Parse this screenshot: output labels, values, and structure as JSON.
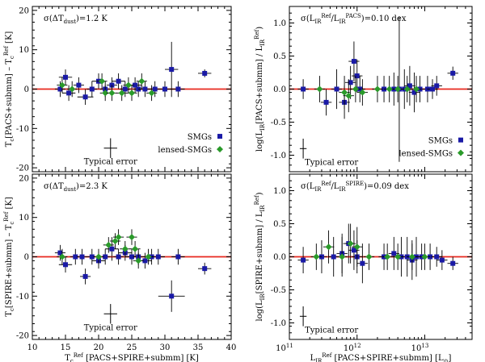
{
  "chart_data": [
    {
      "id": "p1",
      "type": "scatter",
      "title": "",
      "xscale": "linear",
      "yscale": "linear",
      "xlim": [
        10,
        40
      ],
      "ylim": [
        -21,
        21
      ],
      "xticks": [
        10,
        15,
        20,
        25,
        30,
        35,
        40
      ],
      "yticks": [
        -20,
        -10,
        0,
        10,
        20
      ],
      "xticklabels": [],
      "yticklabels": [
        "-20",
        "-10",
        "0",
        "10",
        "20"
      ],
      "xlabel": "",
      "ylabel": "T_c[PACS+submm] – T_c^Ref [K]",
      "ylabel_parts": [
        "T",
        "c",
        "[PACS+submm] – T",
        "c",
        "Ref",
        " [K]"
      ],
      "zero_line": 0,
      "annotation": "σ(ΔT_dust)=1.2 K",
      "annotation_parts": [
        "σ(ΔT",
        "dust",
        ")=1.2 K"
      ],
      "typical_error": {
        "label": "Typical error",
        "x": 21.8,
        "y": -15,
        "dx": 1.0,
        "dy": 2.5
      },
      "legend": [
        {
          "name": "SMGs",
          "color": "#1a1aa6",
          "marker": "square"
        },
        {
          "name": "lensed-SMGs",
          "color": "#2a9a2a",
          "marker": "diamond"
        }
      ],
      "series": [
        {
          "name": "SMGs",
          "marker": "square",
          "color": "#1a1aa6",
          "points": [
            [
              14.2,
              0,
              0.8,
              2
            ],
            [
              15.0,
              3,
              1.0,
              2
            ],
            [
              15.5,
              -1,
              1.0,
              2
            ],
            [
              17.0,
              1,
              0.8,
              2
            ],
            [
              18.0,
              -2,
              1.2,
              2
            ],
            [
              19.0,
              0,
              0.8,
              2
            ],
            [
              20.0,
              2,
              1.0,
              2
            ],
            [
              21.0,
              0,
              0.8,
              2
            ],
            [
              22.0,
              1,
              0.8,
              2
            ],
            [
              23.0,
              2,
              1.0,
              2
            ],
            [
              24.0,
              0,
              0.8,
              2
            ],
            [
              25.5,
              1,
              1.0,
              2
            ],
            [
              26.0,
              0,
              0.8,
              2
            ],
            [
              27.0,
              0,
              1.0,
              2
            ],
            [
              28.5,
              0,
              1.0,
              2
            ],
            [
              30.0,
              0,
              1.0,
              2
            ],
            [
              31.0,
              5,
              1.0,
              7
            ],
            [
              32.0,
              0,
              1.0,
              2
            ],
            [
              36.0,
              4,
              1.0,
              1
            ]
          ]
        },
        {
          "name": "lensed-SMGs",
          "marker": "diamond",
          "color": "#2a9a2a",
          "points": [
            [
              14.5,
              1,
              0.8,
              2
            ],
            [
              16.0,
              0,
              0.8,
              2
            ],
            [
              20.5,
              2,
              0.8,
              2
            ],
            [
              21.0,
              -1,
              0.8,
              2
            ],
            [
              22.0,
              -1,
              0.8,
              2
            ],
            [
              23.5,
              -1,
              0.8,
              2
            ],
            [
              24.5,
              1,
              0.8,
              2
            ],
            [
              25.0,
              -1,
              0.8,
              2
            ],
            [
              26.5,
              2,
              0.8,
              2
            ],
            [
              28.0,
              -1,
              0.8,
              2
            ]
          ]
        }
      ]
    },
    {
      "id": "p2",
      "type": "scatter",
      "title": "",
      "xscale": "log",
      "yscale": "linear",
      "xlim": [
        100000000000.0,
        50000000000000.0
      ],
      "ylim": [
        -1.25,
        1.25
      ],
      "xticks_major": [
        100000000000.0,
        1000000000000.0,
        10000000000000.0
      ],
      "yticks": [
        -1.0,
        -0.5,
        0.0,
        0.5,
        1.0
      ],
      "xticklabels": [],
      "yticklabels": [
        "-1.0",
        "-0.5",
        "0.0",
        "0.5",
        "1.0"
      ],
      "xlabel": "",
      "ylabel": "log(L_IR[PACS+submm] / L_IR^Ref)",
      "ylabel_parts": [
        "log(L",
        "IR",
        "[PACS+submm] / L",
        "IR",
        "Ref",
        ")"
      ],
      "zero_line": 0,
      "annotation": "σ(L_IR^Ref/L_IR^PACS)=0.10 dex",
      "annotation_parts": [
        "σ(L",
        "IR",
        "Ref",
        "/L",
        "IR",
        "PACS",
        ")=0.10 dex"
      ],
      "typical_error": {
        "label": "Typical error",
        "x": 160000000000.0,
        "y": -0.9,
        "dx": 0.05,
        "dy": 0.15
      },
      "legend": [
        {
          "name": "SMGs",
          "color": "#1a1aa6",
          "marker": "square"
        },
        {
          "name": "lensed-SMGs",
          "color": "#2a9a2a",
          "marker": "diamond"
        }
      ],
      "series": [
        {
          "name": "SMGs",
          "marker": "square",
          "color": "#1a1aa6",
          "points": [
            [
              160000000000.0,
              0.0,
              0.08,
              0.15
            ],
            [
              350000000000.0,
              -0.2,
              0.08,
              0.2
            ],
            [
              500000000000.0,
              0.0,
              0.08,
              0.3
            ],
            [
              650000000000.0,
              -0.2,
              0.08,
              0.25
            ],
            [
              800000000000.0,
              0.1,
              0.08,
              0.25
            ],
            [
              900000000000.0,
              0.42,
              0.08,
              0.3
            ],
            [
              1000000000000.0,
              0.2,
              0.08,
              0.25
            ],
            [
              1100000000000.0,
              0.0,
              0.08,
              0.2
            ],
            [
              2500000000000.0,
              0.0,
              0.08,
              0.2
            ],
            [
              3500000000000.0,
              0.0,
              0.08,
              0.25
            ],
            [
              4200000000000.0,
              0.0,
              0.08,
              1.1
            ],
            [
              5000000000000.0,
              0.0,
              0.08,
              0.3
            ],
            [
              6000000000000.0,
              0.05,
              0.08,
              0.3
            ],
            [
              7000000000000.0,
              -0.05,
              0.08,
              0.3
            ],
            [
              8500000000000.0,
              0.0,
              0.08,
              0.2
            ],
            [
              11000000000000.0,
              0.0,
              0.08,
              0.2
            ],
            [
              13000000000000.0,
              0.0,
              0.08,
              0.15
            ],
            [
              15000000000000.0,
              0.05,
              0.08,
              0.15
            ],
            [
              26000000000000.0,
              0.24,
              0.08,
              0.1
            ]
          ]
        },
        {
          "name": "lensed-SMGs",
          "marker": "diamond",
          "color": "#2a9a2a",
          "points": [
            [
              280000000000.0,
              0.0,
              0.08,
              0.2
            ],
            [
              650000000000.0,
              -0.05,
              0.08,
              0.25
            ],
            [
              750000000000.0,
              -0.1,
              0.08,
              0.25
            ],
            [
              950000000000.0,
              0.0,
              0.08,
              0.2
            ],
            [
              1200000000000.0,
              -0.05,
              0.08,
              0.2
            ],
            [
              2000000000000.0,
              0.0,
              0.08,
              0.2
            ],
            [
              3000000000000.0,
              0.0,
              0.08,
              0.2
            ],
            [
              4000000000000.0,
              0.0,
              0.08,
              0.2
            ],
            [
              5500000000000.0,
              0.0,
              0.08,
              0.2
            ],
            [
              7500000000000.0,
              0.0,
              0.08,
              0.2
            ]
          ]
        }
      ]
    },
    {
      "id": "p3",
      "type": "scatter",
      "title": "",
      "xscale": "linear",
      "yscale": "linear",
      "xlim": [
        10,
        40
      ],
      "ylim": [
        -21,
        21
      ],
      "xticks": [
        10,
        15,
        20,
        25,
        30,
        35,
        40
      ],
      "yticks": [
        -20,
        -10,
        0,
        10,
        20
      ],
      "xticklabels": [
        "10",
        "15",
        "20",
        "25",
        "30",
        "35",
        "40"
      ],
      "yticklabels": [
        "-20",
        "-10",
        "0",
        "10",
        "20"
      ],
      "xlabel": "T_c^Ref [PACS+SPIRE+submm] [K]",
      "xlabel_parts": [
        "T",
        "c",
        "Ref",
        " [PACS+SPIRE+submm] [K]"
      ],
      "ylabel": "T_c[SPIRE+submm] – T_c^Ref [K]",
      "ylabel_parts": [
        "T",
        "c",
        "[SPIRE+submm] – T",
        "c",
        "Ref",
        " [K]"
      ],
      "zero_line": 0,
      "annotation": "σ(ΔT_dust)=2.3 K",
      "annotation_parts": [
        "σ(ΔT",
        "dust",
        ")=2.3 K"
      ],
      "typical_error": {
        "label": "Typical error",
        "x": 21.8,
        "y": -14.5,
        "dx": 1.0,
        "dy": 2.5
      },
      "series": [
        {
          "name": "SMGs",
          "marker": "square",
          "color": "#1a1aa6",
          "points": [
            [
              14.2,
              1,
              0.8,
              2
            ],
            [
              15.0,
              -2,
              1.0,
              2
            ],
            [
              16.5,
              0,
              0.8,
              2
            ],
            [
              17.5,
              0,
              0.8,
              2
            ],
            [
              18.0,
              -5,
              0.8,
              2
            ],
            [
              19.0,
              0,
              0.8,
              2
            ],
            [
              20.0,
              -1,
              1.0,
              2
            ],
            [
              21.0,
              0,
              0.8,
              2
            ],
            [
              22.0,
              2,
              1.0,
              3
            ],
            [
              23.0,
              0,
              0.8,
              2
            ],
            [
              24.0,
              1,
              1.0,
              2
            ],
            [
              25.0,
              0,
              1.0,
              2
            ],
            [
              26.0,
              0,
              0.8,
              2
            ],
            [
              27.0,
              -1,
              1.0,
              2
            ],
            [
              28.0,
              0,
              1.0,
              2
            ],
            [
              29.0,
              0,
              1.0,
              2
            ],
            [
              31.0,
              -10,
              2.0,
              4
            ],
            [
              32.0,
              0,
              1.0,
              2
            ],
            [
              36.0,
              -3,
              1.0,
              1.5
            ]
          ]
        },
        {
          "name": "lensed-SMGs",
          "marker": "diamond",
          "color": "#2a9a2a",
          "points": [
            [
              14.5,
              0,
              0.8,
              2
            ],
            [
              20.0,
              0,
              0.8,
              2
            ],
            [
              21.5,
              3,
              0.8,
              2
            ],
            [
              22.5,
              4,
              0.8,
              2
            ],
            [
              23.0,
              5,
              0.8,
              2
            ],
            [
              24.0,
              2,
              0.8,
              2
            ],
            [
              25.0,
              5,
              0.8,
              2
            ],
            [
              25.5,
              2,
              0.8,
              2
            ],
            [
              26.0,
              -1,
              0.8,
              2
            ],
            [
              27.5,
              0,
              0.8,
              2
            ]
          ]
        }
      ]
    },
    {
      "id": "p4",
      "type": "scatter",
      "title": "",
      "xscale": "log",
      "yscale": "linear",
      "xlim": [
        100000000000.0,
        50000000000000.0
      ],
      "ylim": [
        -1.25,
        1.25
      ],
      "xticks_major": [
        100000000000.0,
        1000000000000.0,
        10000000000000.0
      ],
      "yticks": [
        -1.0,
        -0.5,
        0.0,
        0.5,
        1.0
      ],
      "xticklabels": [
        "10^11",
        "10^12",
        "10^13"
      ],
      "xticklabel_parts": [
        [
          "10",
          "11"
        ],
        [
          "10",
          "12"
        ],
        [
          "10",
          "13"
        ]
      ],
      "yticklabels": [
        "-1.0",
        "-0.5",
        "0.0",
        "0.5",
        "1.0"
      ],
      "xlabel": "L_IR^Ref [PACS+SPIRE+submm] [L_⊙]",
      "xlabel_parts": [
        "L",
        "IR",
        "Ref",
        " [PACS+SPIRE+submm] [L",
        "⊙",
        "]"
      ],
      "ylabel": "log(L_IR[SPIRE+submm] / L_IR^Ref)",
      "ylabel_parts": [
        "log(L",
        "IR",
        "[SPIRE+submm] / L",
        "IR",
        "Ref",
        ")"
      ],
      "zero_line": 0,
      "annotation": "σ(L_IR^Ref/L_IR^SPIRE)=0.09 dex",
      "annotation_parts": [
        "σ(L",
        "IR",
        "Ref",
        "/L",
        "IR",
        "SPIRE",
        ")=0.09 dex"
      ],
      "typical_error": {
        "label": "Typical error",
        "x": 160000000000.0,
        "y": -0.9,
        "dx": 0.05,
        "dy": 0.15
      },
      "series": [
        {
          "name": "SMGs",
          "marker": "square",
          "color": "#1a1aa6",
          "points": [
            [
              160000000000.0,
              -0.05,
              0.08,
              0.2
            ],
            [
              300000000000.0,
              0.0,
              0.08,
              0.25
            ],
            [
              450000000000.0,
              0.0,
              0.08,
              0.3
            ],
            [
              600000000000.0,
              0.05,
              0.08,
              0.3
            ],
            [
              750000000000.0,
              0.2,
              0.08,
              0.3
            ],
            [
              900000000000.0,
              0.1,
              0.08,
              0.3
            ],
            [
              1000000000000.0,
              0.0,
              0.08,
              0.25
            ],
            [
              1200000000000.0,
              -0.1,
              0.08,
              0.3
            ],
            [
              2500000000000.0,
              0.0,
              0.08,
              0.2
            ],
            [
              3500000000000.0,
              0.05,
              0.08,
              0.25
            ],
            [
              4500000000000.0,
              0.0,
              0.08,
              0.3
            ],
            [
              5500000000000.0,
              0.0,
              0.08,
              0.3
            ],
            [
              6500000000000.0,
              -0.05,
              0.08,
              0.3
            ],
            [
              7500000000000.0,
              0.0,
              0.08,
              0.3
            ],
            [
              9000000000000.0,
              0.0,
              0.08,
              0.2
            ],
            [
              12000000000000.0,
              0.0,
              0.08,
              0.2
            ],
            [
              15000000000000.0,
              0.0,
              0.08,
              0.15
            ],
            [
              18000000000000.0,
              -0.05,
              0.08,
              0.15
            ],
            [
              26000000000000.0,
              -0.1,
              0.08,
              0.1
            ]
          ]
        },
        {
          "name": "lensed-SMGs",
          "marker": "diamond",
          "color": "#2a9a2a",
          "points": [
            [
              250000000000.0,
              0.0,
              0.08,
              0.2
            ],
            [
              380000000000.0,
              0.15,
              0.08,
              0.25
            ],
            [
              600000000000.0,
              0.0,
              0.08,
              0.3
            ],
            [
              800000000000.0,
              0.2,
              0.08,
              0.3
            ],
            [
              1000000000000.0,
              0.15,
              0.08,
              0.3
            ],
            [
              1500000000000.0,
              0.0,
              0.08,
              0.2
            ],
            [
              2800000000000.0,
              0.0,
              0.08,
              0.2
            ],
            [
              4000000000000.0,
              0.0,
              0.08,
              0.2
            ],
            [
              6500000000000.0,
              0.0,
              0.08,
              0.2
            ],
            [
              10000000000000.0,
              0.0,
              0.08,
              0.2
            ]
          ]
        }
      ]
    }
  ]
}
